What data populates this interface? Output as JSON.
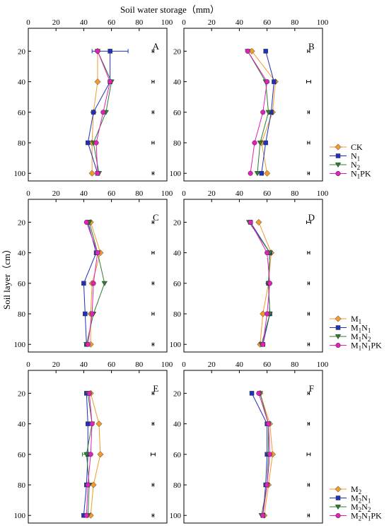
{
  "figure": {
    "xlabel": "Soil water storage（mm）",
    "ylabel": "Soil layer（cm）"
  },
  "colors": {
    "orange": "#F39A2B",
    "blue": "#1F2FBF",
    "green": "#2E7D32",
    "magenta": "#E020B8"
  },
  "chart_data": [
    {
      "type": "line",
      "title": "A",
      "xlim": [
        0,
        100
      ],
      "xticks": [
        0,
        20,
        40,
        60,
        80,
        100
      ],
      "depths": [
        20,
        40,
        60,
        80,
        100
      ],
      "errorbars_right": [
        0.6,
        0.8,
        0.6,
        0.8,
        0.6
      ],
      "series": [
        {
          "name": "CK",
          "x": [
            50,
            50,
            47,
            46,
            46
          ],
          "xerr": [
            0,
            0,
            0,
            0,
            0
          ]
        },
        {
          "name": "N1",
          "x": [
            59,
            59,
            47,
            43,
            50
          ],
          "xerr": [
            13,
            0,
            0,
            0,
            0
          ]
        },
        {
          "name": "N2",
          "x": [
            50,
            60,
            56,
            47,
            51
          ],
          "xerr": [
            0,
            0,
            0,
            0,
            0
          ]
        },
        {
          "name": "N1PK",
          "x": [
            50,
            59,
            54,
            49,
            50
          ],
          "xerr": [
            0,
            0,
            0,
            0,
            0
          ]
        }
      ]
    },
    {
      "type": "line",
      "title": "B",
      "xlim": [
        0,
        100
      ],
      "xticks": [
        0,
        20,
        40,
        60,
        80,
        100
      ],
      "depths": [
        20,
        40,
        60,
        80,
        100
      ],
      "errorbars_right": [
        0.8,
        1.5,
        0.6,
        0.8,
        0.6
      ],
      "series": [
        {
          "name": "CK",
          "x": [
            49,
            66,
            64,
            56,
            60
          ],
          "xerr": [
            0,
            0,
            0,
            0,
            0
          ]
        },
        {
          "name": "N1",
          "x": [
            59,
            65,
            63,
            59,
            56
          ],
          "xerr": [
            0,
            0,
            0,
            0,
            0
          ]
        },
        {
          "name": "N2",
          "x": [
            46,
            59,
            61,
            55,
            53
          ],
          "xerr": [
            0,
            0,
            0,
            0,
            0
          ]
        },
        {
          "name": "N1PK",
          "x": [
            46,
            60,
            57,
            51,
            48
          ],
          "xerr": [
            0,
            0,
            0,
            0,
            0
          ]
        }
      ]
    },
    {
      "type": "line",
      "title": "C",
      "xlim": [
        0,
        100
      ],
      "xticks": [
        0,
        20,
        40,
        60,
        80,
        100
      ],
      "depths": [
        20,
        40,
        60,
        80,
        100
      ],
      "errorbars_right": [
        0.6,
        0.8,
        0.6,
        0.8,
        0.6
      ],
      "series": [
        {
          "name": "M1",
          "x": [
            45,
            52,
            46,
            45,
            45
          ],
          "xerr": [
            0,
            0,
            0,
            0,
            0
          ]
        },
        {
          "name": "M1N1",
          "x": [
            43,
            49,
            40,
            41,
            42
          ],
          "xerr": [
            0,
            0,
            0,
            0,
            0
          ]
        },
        {
          "name": "M1N2",
          "x": [
            44,
            50,
            55,
            47,
            42
          ],
          "xerr": [
            0,
            0,
            0,
            0,
            0
          ]
        },
        {
          "name": "M1N1PK",
          "x": [
            42,
            50,
            47,
            46,
            43
          ],
          "xerr": [
            0,
            0,
            0,
            0,
            0
          ]
        }
      ]
    },
    {
      "type": "line",
      "title": "D",
      "xlim": [
        0,
        100
      ],
      "xticks": [
        0,
        20,
        40,
        60,
        80,
        100
      ],
      "depths": [
        20,
        40,
        60,
        80,
        100
      ],
      "errorbars_right": [
        1.5,
        0.8,
        0.6,
        0.6,
        0.6
      ],
      "series": [
        {
          "name": "M1",
          "x": [
            54,
            63,
            61,
            57,
            55
          ],
          "xerr": [
            0,
            0,
            0,
            0,
            0
          ]
        },
        {
          "name": "M1N1",
          "x": [
            48,
            62,
            61,
            62,
            57
          ],
          "xerr": [
            0,
            0,
            0,
            0,
            0
          ]
        },
        {
          "name": "M1N2",
          "x": [
            47,
            62,
            61,
            62,
            56
          ],
          "xerr": [
            0,
            0,
            0,
            0,
            0
          ]
        },
        {
          "name": "M1N1PK",
          "x": [
            48,
            60,
            62,
            60,
            57
          ],
          "xerr": [
            0,
            0,
            0,
            0,
            0
          ]
        }
      ]
    },
    {
      "type": "line",
      "title": "E",
      "xlim": [
        0,
        100
      ],
      "xticks": [
        0,
        20,
        40,
        60,
        80,
        100
      ],
      "depths": [
        20,
        40,
        60,
        80,
        100
      ],
      "errorbars_right": [
        0.6,
        0.6,
        1.5,
        0.6,
        0.6
      ],
      "series": [
        {
          "name": "M2",
          "x": [
            45,
            51,
            52,
            47,
            45
          ],
          "xerr": [
            0,
            0,
            0,
            0,
            0
          ]
        },
        {
          "name": "M2N1",
          "x": [
            42,
            43,
            43,
            42,
            40
          ],
          "xerr": [
            0,
            0,
            0,
            0,
            0
          ]
        },
        {
          "name": "M2N2",
          "x": [
            43,
            46,
            42,
            44,
            43
          ],
          "xerr": [
            0,
            0,
            3,
            0,
            0
          ]
        },
        {
          "name": "M2N1PK",
          "x": [
            44,
            46,
            45,
            43,
            42
          ],
          "xerr": [
            0,
            0,
            0,
            0,
            0
          ]
        }
      ]
    },
    {
      "type": "line",
      "title": "F",
      "xlim": [
        0,
        100
      ],
      "xticks": [
        0,
        20,
        40,
        60,
        80,
        100
      ],
      "depths": [
        20,
        40,
        60,
        80,
        100
      ],
      "errorbars_right": [
        0.6,
        0.6,
        1.2,
        0.6,
        0.6
      ],
      "series": [
        {
          "name": "M2",
          "x": [
            55,
            62,
            64,
            61,
            58
          ],
          "xerr": [
            0,
            0,
            0,
            0,
            0
          ]
        },
        {
          "name": "M2N1",
          "x": [
            49,
            60,
            60,
            59,
            57
          ],
          "xerr": [
            0,
            0,
            0,
            0,
            0
          ]
        },
        {
          "name": "M2N2",
          "x": [
            55,
            61,
            61,
            60,
            56
          ],
          "xerr": [
            0,
            0,
            0,
            0,
            0
          ]
        },
        {
          "name": "M2N1PK",
          "x": [
            54,
            61,
            62,
            60,
            57
          ],
          "xerr": [
            0,
            0,
            0,
            0,
            0
          ]
        }
      ]
    }
  ],
  "legends": [
    {
      "entries": [
        {
          "label": "CK",
          "base": "",
          "sub": "",
          "rest": ""
        },
        {
          "label": "N1",
          "base": "N",
          "sub": "1",
          "rest": ""
        },
        {
          "label": "N2",
          "base": "N",
          "sub": "2",
          "rest": ""
        },
        {
          "label": "N1PK",
          "base": "N",
          "sub": "1",
          "rest": "PK"
        }
      ]
    },
    {
      "entries": [
        {
          "label": "M1",
          "base": "M",
          "sub": "1",
          "rest": ""
        },
        {
          "label": "M1N1",
          "base": "M",
          "sub": "1",
          "rest": "N1"
        },
        {
          "label": "M1N2",
          "base": "M",
          "sub": "1",
          "rest": "N2"
        },
        {
          "label": "M1N1PK",
          "base": "M",
          "sub": "1",
          "rest": "N1PK"
        }
      ]
    },
    {
      "entries": [
        {
          "label": "M2",
          "base": "M",
          "sub": "2",
          "rest": ""
        },
        {
          "label": "M2N1",
          "base": "M",
          "sub": "2",
          "rest": "N1"
        },
        {
          "label": "M2N2",
          "base": "M",
          "sub": "2",
          "rest": "N2"
        },
        {
          "label": "M2N1PK",
          "base": "M",
          "sub": "2",
          "rest": "N1PK"
        }
      ]
    }
  ]
}
